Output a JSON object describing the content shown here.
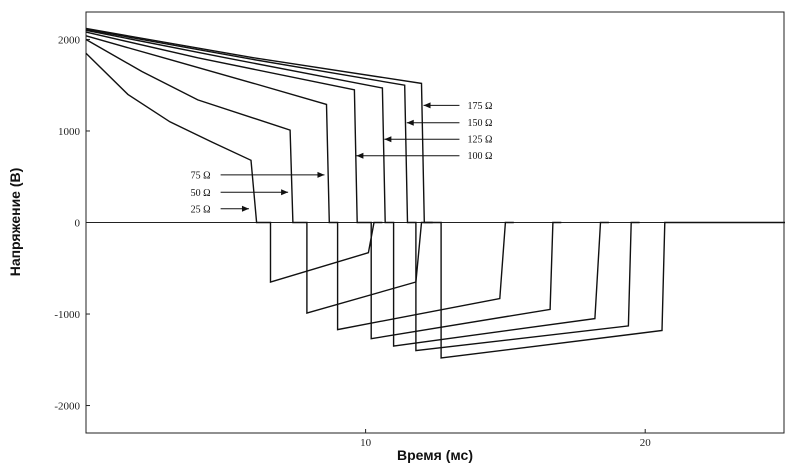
{
  "chart_data": {
    "type": "line",
    "xlabel": "Время (мс)",
    "ylabel": "Напряжение (В)",
    "xlim": [
      0,
      25
    ],
    "ylim": [
      -2300,
      2300
    ],
    "xticks": [
      {
        "value": 10,
        "label": "10"
      },
      {
        "value": 20,
        "label": "20"
      }
    ],
    "yticks": [
      {
        "value": 2000,
        "label": "2000"
      },
      {
        "value": 1000,
        "label": "1000"
      },
      {
        "value": 0,
        "label": "0"
      },
      {
        "value": -1000,
        "label": "-1000"
      },
      {
        "value": -2000,
        "label": "-2000"
      }
    ],
    "grid": false,
    "series": [
      {
        "name": "25 Ω",
        "label_x": 4.6,
        "label_y": 150,
        "arrow_to": [
          5.9,
          150
        ],
        "points": [
          [
            0,
            1850
          ],
          [
            1.5,
            1400
          ],
          [
            3,
            1100
          ],
          [
            4.5,
            880
          ],
          [
            5.9,
            680
          ],
          [
            6.1,
            0
          ],
          [
            6.6,
            0
          ],
          [
            6.6,
            -650
          ],
          [
            10.1,
            -330
          ],
          [
            10.3,
            0
          ],
          [
            10.6,
            0
          ]
        ]
      },
      {
        "name": "50 Ω",
        "label_x": 4.6,
        "label_y": 330,
        "arrow_to": [
          7.3,
          330
        ],
        "points": [
          [
            0,
            2000
          ],
          [
            2,
            1650
          ],
          [
            4,
            1340
          ],
          [
            7.3,
            1010
          ],
          [
            7.4,
            0
          ],
          [
            7.9,
            0
          ],
          [
            7.9,
            -990
          ],
          [
            11.8,
            -650
          ],
          [
            12.0,
            0
          ],
          [
            12.4,
            0
          ]
        ]
      },
      {
        "name": "75 Ω",
        "label_x": 4.6,
        "label_y": 520,
        "arrow_to": [
          8.6,
          520
        ],
        "points": [
          [
            0,
            2040
          ],
          [
            3,
            1780
          ],
          [
            6,
            1520
          ],
          [
            8.6,
            1290
          ],
          [
            8.7,
            0
          ],
          [
            9.0,
            0
          ],
          [
            9.0,
            -1170
          ],
          [
            14.8,
            -830
          ],
          [
            15.0,
            0
          ],
          [
            15.3,
            0
          ]
        ]
      },
      {
        "name": "100 Ω",
        "label_x": 13.5,
        "label_y": 730,
        "arrow_to": [
          9.6,
          730
        ],
        "points": [
          [
            0,
            2080
          ],
          [
            4,
            1800
          ],
          [
            9.6,
            1450
          ],
          [
            9.7,
            0
          ],
          [
            10.2,
            0
          ],
          [
            10.2,
            -1270
          ],
          [
            16.6,
            -950
          ],
          [
            16.7,
            0
          ],
          [
            17.0,
            0
          ]
        ]
      },
      {
        "name": "125 Ω",
        "label_x": 13.5,
        "label_y": 910,
        "arrow_to": [
          10.6,
          910
        ],
        "points": [
          [
            0,
            2100
          ],
          [
            5,
            1800
          ],
          [
            10.6,
            1470
          ],
          [
            10.7,
            0
          ],
          [
            11.0,
            0
          ],
          [
            11.0,
            -1350
          ],
          [
            18.2,
            -1050
          ],
          [
            18.4,
            0
          ],
          [
            18.7,
            0
          ]
        ]
      },
      {
        "name": "150 Ω",
        "label_x": 13.5,
        "label_y": 1090,
        "arrow_to": [
          11.4,
          1090
        ],
        "points": [
          [
            0,
            2110
          ],
          [
            6,
            1780
          ],
          [
            11.4,
            1500
          ],
          [
            11.5,
            0
          ],
          [
            11.8,
            0
          ],
          [
            11.8,
            -1400
          ],
          [
            19.4,
            -1130
          ],
          [
            19.5,
            0
          ],
          [
            19.8,
            0
          ]
        ]
      },
      {
        "name": "175 Ω",
        "label_x": 13.5,
        "label_y": 1280,
        "arrow_to": [
          12.0,
          1280
        ],
        "points": [
          [
            0,
            2120
          ],
          [
            6,
            1800
          ],
          [
            12.0,
            1520
          ],
          [
            12.1,
            0
          ],
          [
            12.7,
            0
          ],
          [
            12.7,
            -1480
          ],
          [
            20.6,
            -1180
          ],
          [
            20.7,
            0
          ],
          [
            25,
            0
          ]
        ]
      }
    ]
  }
}
